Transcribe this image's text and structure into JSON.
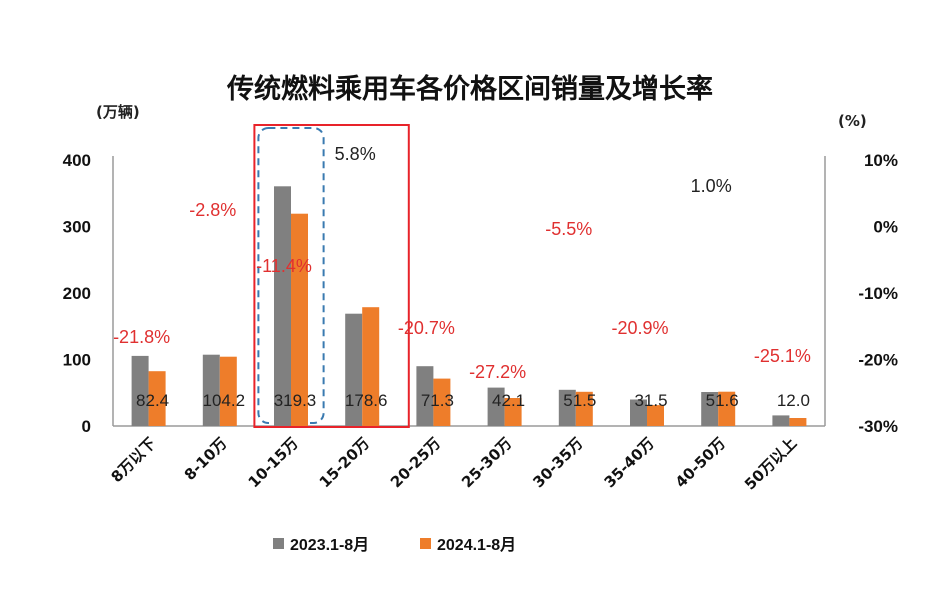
{
  "chart_data": {
    "type": "bar",
    "title": "传统燃料乘用车各价格区间销量及增长率",
    "y_left_unit": "(万辆)",
    "y_right_unit": "(%)",
    "ylim": [
      0,
      400
    ],
    "y_ticks": [
      "0",
      "100",
      "200",
      "300",
      "400"
    ],
    "y2lim": [
      -30,
      10
    ],
    "y2_ticks": [
      "-30%",
      "-20%",
      "-10%",
      "0%",
      "10%"
    ],
    "categories": [
      "8万以下",
      "8-10万",
      "10-15万",
      "15-20万",
      "20-25万",
      "25-30万",
      "30-35万",
      "35-40万",
      "40-50万",
      "50万以上"
    ],
    "series": [
      {
        "name": "2023.1-8月",
        "color": "#808080",
        "values": [
          105.4,
          107.2,
          360.4,
          168.8,
          89.9,
          57.8,
          54.5,
          39.8,
          51.1,
          16.0
        ]
      },
      {
        "name": "2024.1-8月",
        "color": "#ee7d2a",
        "values": [
          82.4,
          104.2,
          319.3,
          178.6,
          71.3,
          42.1,
          51.5,
          31.5,
          51.6,
          12.0
        ]
      }
    ],
    "value_labels": [
      "82.4",
      "104.2",
      "319.3",
      "178.6",
      "71.3",
      "42.1",
      "51.5",
      "31.5",
      "51.6",
      "12.0"
    ],
    "growth_labels": [
      "-21.8%",
      "-2.8%",
      "-11.4%",
      "5.8%",
      "-20.7%",
      "-27.2%",
      "-5.5%",
      "-20.9%",
      "1.0%",
      "-25.1%"
    ],
    "growth_colors": [
      "#e03030",
      "#e03030",
      "#e03030",
      "#222222",
      "#e03030",
      "#e03030",
      "#e03030",
      "#e03030",
      "#222222",
      "#e03030"
    ],
    "legend_position": "bottom",
    "grid": false,
    "highlight_categories": [
      "10-15万",
      "15-20万"
    ]
  }
}
